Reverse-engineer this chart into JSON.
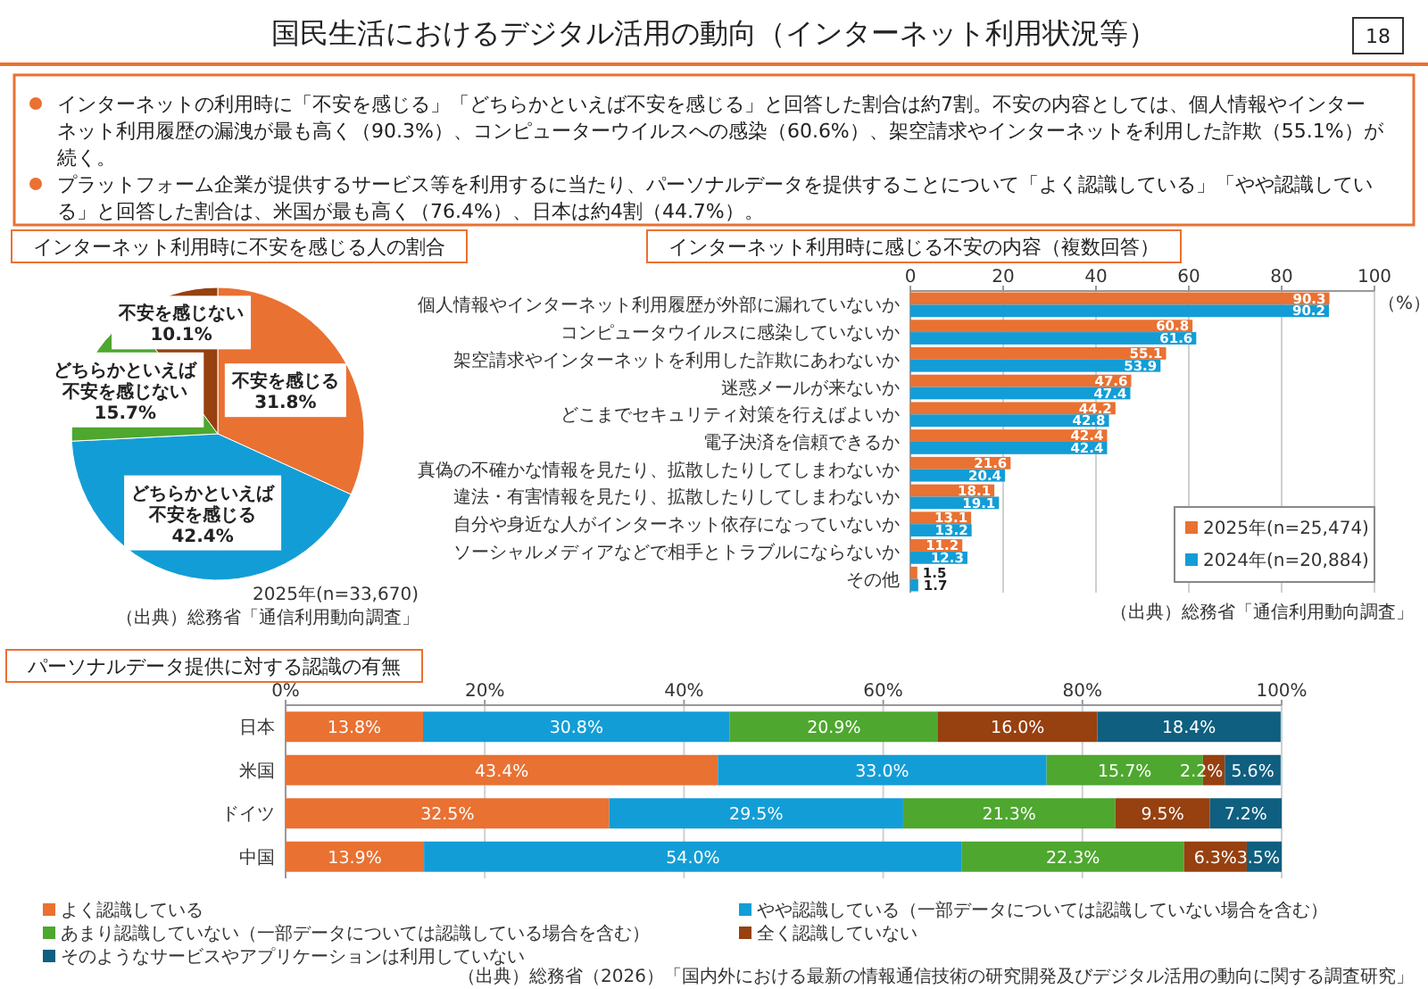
{
  "chart_data": [
    {
      "type": "other",
      "title": "国民生活におけるデジタル活用の動向（インターネット利用状況等）",
      "annotations": [
        "18",
        "インターネットの利用時に「不安を感じる」「どちらかといえば不安を感じる」と回答した割合は約7割。不安の内容としては、個人情報やインターネット利用履歴の漏洩が最も高く（90.3%）、コンピューターウイルスへの感染（60.6%）、架空請求やインターネットを利用した詐欺（55.1%）が続く。",
        "プラットフォーム企業が提供するサービス等を利用するに当たり、パーソナルデータを提供することについて「よく認識している」「やや認識している」と回答した割合は、米国が最も高く（76.4%）、日本は約4割（44.7%）。"
      ]
    },
    {
      "type": "pie",
      "title": "インターネット利用時に不安を感じる人の割合",
      "categories": [
        "不安を感じる",
        "どちらかといえば不安を感じる",
        "どちらかといえば不安を感じない",
        "不安を感じない"
      ],
      "values": [
        31.8,
        42.4,
        15.7,
        10.1
      ],
      "value_labels": [
        "31.8%",
        "42.4%",
        "15.7%",
        "10.1%"
      ],
      "colors": [
        "#e97132",
        "#139dd6",
        "#4ea72e",
        "#974010"
      ],
      "annotations": [
        "2025年(n=33,670)",
        "（出典）総務省「通信利用動向調査」"
      ]
    },
    {
      "type": "bar",
      "orientation": "horizontal",
      "title": "インターネット利用時に感じる不安の内容（複数回答）",
      "xlabel": "（%）",
      "categories": [
        "個人情報やインターネット利用履歴が外部に漏れていないか",
        "コンピュータウイルスに感染していないか",
        "架空請求やインターネットを利用した詐欺にあわないか",
        "迷惑メールが来ないか",
        "どこまでセキュリティ対策を行えばよいか",
        "電子決済を信頼できるか",
        "真偽の不確かな情報を見たり、拡散したりしてしまわないか",
        "違法・有害情報を見たり、拡散したりしてしまわないか",
        "自分や身近な人がインターネット依存になっていないか",
        "ソーシャルメディアなどで相手とトラブルにならないか",
        "その他"
      ],
      "series": [
        {
          "name": "2025年(n=25,474)",
          "color": "#e97132",
          "values": [
            90.3,
            60.8,
            55.1,
            47.6,
            44.2,
            42.4,
            21.6,
            18.1,
            13.1,
            11.2,
            1.5
          ]
        },
        {
          "name": "2024年(n=20,884)",
          "color": "#139dd6",
          "values": [
            90.2,
            61.6,
            53.9,
            47.4,
            42.8,
            42.4,
            20.4,
            19.1,
            13.2,
            12.3,
            1.7
          ]
        }
      ],
      "xlim": [
        0,
        100
      ],
      "xticks": [
        0,
        20,
        40,
        60,
        80,
        100
      ],
      "grid": "x",
      "data_labels": true,
      "legend": "bottom right",
      "annotations": [
        "（出典）総務省「通信利用動向調査」"
      ]
    },
    {
      "type": "bar",
      "orientation": "horizontal",
      "stacked": true,
      "title": "パーソナルデータ提供に対する認識の有無",
      "categories": [
        "日本",
        "米国",
        "ドイツ",
        "中国"
      ],
      "series": [
        {
          "name": "よく認識している",
          "color": "#e97132",
          "values": [
            13.8,
            43.4,
            32.5,
            13.9
          ],
          "value_labels": [
            "13.8%",
            "43.4%",
            "32.5%",
            "13.9%"
          ]
        },
        {
          "name": "やや認識している（一部データについては認識していない場合を含む）",
          "color": "#139dd6",
          "values": [
            30.8,
            33.0,
            29.5,
            54.0
          ],
          "value_labels": [
            "30.8%",
            "33.0%",
            "29.5%",
            "54.0%"
          ]
        },
        {
          "name": "あまり認識していない（一部データについては認識している場合を含む）",
          "color": "#4ea72e",
          "values": [
            20.9,
            15.7,
            21.3,
            22.3
          ],
          "value_labels": [
            "20.9%",
            "15.7%",
            "21.3%",
            "22.3%"
          ]
        },
        {
          "name": "全く認識していない",
          "color": "#974010",
          "values": [
            16.0,
            2.2,
            9.5,
            6.3
          ],
          "value_labels": [
            "16.0%",
            "2.2%",
            "9.5%",
            "6.3%"
          ]
        },
        {
          "name": "そのようなサービスやアプリケーションは利用していない",
          "color": "#0f5f80",
          "values": [
            18.4,
            5.6,
            7.2,
            3.5
          ],
          "value_labels": [
            "18.4%",
            "5.6%",
            "7.2%",
            "3.5%"
          ]
        }
      ],
      "xlim": [
        0,
        100
      ],
      "xticks": [
        {
          "value": 0,
          "label": "0%"
        },
        {
          "value": 20,
          "label": "20%"
        },
        {
          "value": 40,
          "label": "40%"
        },
        {
          "value": 60,
          "label": "60%"
        },
        {
          "value": 80,
          "label": "80%"
        },
        {
          "value": 100,
          "label": "100%"
        }
      ],
      "grid": "x",
      "legend": "bottom",
      "annotations": [
        "（出典）総務省（2026）「国内外における最新の情報通信技術の研究開発及びデジタル活用の動向に関する調査研究」"
      ]
    }
  ]
}
